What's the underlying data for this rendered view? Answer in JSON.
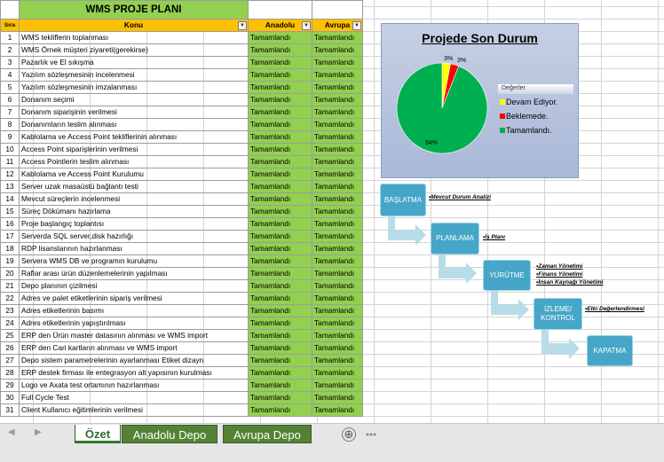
{
  "sheet": {
    "title": "WMS PROJE PLANI",
    "headers": {
      "sira": "Sıra",
      "konu": "Konu",
      "anadolu": "Anadolu",
      "avrupa": "Avrupa"
    },
    "filter_icon": "dropdown-arrow-icon",
    "rows": [
      {
        "no": "1",
        "konu": "WMS tekliflerin toplanması",
        "anadolu": "Tamamlandı",
        "avrupa": "Tamamlandı"
      },
      {
        "no": "2",
        "konu": "WMS Örnek müşteri ziyareti(gerekirse)",
        "anadolu": "Tamamlandı",
        "avrupa": "Tamamlandı"
      },
      {
        "no": "3",
        "konu": "Pazarlık ve El sıkışma",
        "anadolu": "Tamamlandı",
        "avrupa": "Tamamlandı"
      },
      {
        "no": "4",
        "konu": "Yazılım sözleşmesinin incelenmesi",
        "anadolu": "Tamamlandı",
        "avrupa": "Tamamlandı"
      },
      {
        "no": "5",
        "konu": "Yazılım sözleşmesinin imzalanması",
        "anadolu": "Tamamlandı",
        "avrupa": "Tamamlandı"
      },
      {
        "no": "6",
        "konu": "Donanım seçimi",
        "anadolu": "Tamamlandı",
        "avrupa": "Tamamlandı"
      },
      {
        "no": "7",
        "konu": "Donanım siparişinin verilmesi",
        "anadolu": "Tamamlandı",
        "avrupa": "Tamamlandı"
      },
      {
        "no": "8",
        "konu": "Donanımların teslim alınması",
        "anadolu": "Tamamlandı",
        "avrupa": "Tamamlandı"
      },
      {
        "no": "9",
        "konu": "Kablolama ve Access Point tekliflerinin alınması",
        "anadolu": "Tamamlandı",
        "avrupa": "Tamamlandı"
      },
      {
        "no": "10",
        "konu": "Access Point siparişlerinin verilmesi",
        "anadolu": "Tamamlandı",
        "avrupa": "Tamamlandı"
      },
      {
        "no": "11",
        "konu": "Access Pointlerin teslim alınması",
        "anadolu": "Tamamlandı",
        "avrupa": "Tamamlandı"
      },
      {
        "no": "12",
        "konu": "Kablolama ve Access Point Kurulumu",
        "anadolu": "Tamamlandı",
        "avrupa": "Tamamlandı"
      },
      {
        "no": "13",
        "konu": "Server uzak masaüstü bağlantı testi",
        "anadolu": "Tamamlandı",
        "avrupa": "Tamamlandı"
      },
      {
        "no": "14",
        "konu": "Mevcut süreçlerin incelenmesi",
        "anadolu": "Tamamlandı",
        "avrupa": "Tamamlandı"
      },
      {
        "no": "15",
        "konu": "Süreç Dökümanı hazırlama",
        "anadolu": "Tamamlandı",
        "avrupa": "Tamamlandı"
      },
      {
        "no": "16",
        "konu": "Proje başlangıç toplantısı",
        "anadolu": "Tamamlandı",
        "avrupa": "Tamamlandı"
      },
      {
        "no": "17",
        "konu": "Serverda SQL server,disk hazırlığı",
        "anadolu": "Tamamlandı",
        "avrupa": "Tamamlandı"
      },
      {
        "no": "18",
        "konu": "RDP lisanslarının hazırlanması",
        "anadolu": "Tamamlandı",
        "avrupa": "Tamamlandı"
      },
      {
        "no": "19",
        "konu": "Servera WMS DB ve programın kurulumu",
        "anadolu": "Tamamlandı",
        "avrupa": "Tamamlandı"
      },
      {
        "no": "20",
        "konu": "Raflar arası ürün düzenlemelerinin yapılması",
        "anadolu": "Tamamlandı",
        "avrupa": "Tamamlandı"
      },
      {
        "no": "21",
        "konu": "Depo planının çizilmesi",
        "anadolu": "Tamamlandı",
        "avrupa": "Tamamlandı"
      },
      {
        "no": "22",
        "konu": "Adres ve palet etiketlerinin sipariş verilmesi",
        "anadolu": "Tamamlandı",
        "avrupa": "Tamamlandı"
      },
      {
        "no": "23",
        "konu": "Adres etiketlerinin basımı",
        "anadolu": "Tamamlandı",
        "avrupa": "Tamamlandı"
      },
      {
        "no": "24",
        "konu": "Adres etiketlerinin yapıştırılması",
        "anadolu": "Tamamlandı",
        "avrupa": "Tamamlandı"
      },
      {
        "no": "25",
        "konu": "ERP den Ürün master datasının alınması ve WMS import",
        "anadolu": "Tamamlandı",
        "avrupa": "Tamamlandı"
      },
      {
        "no": "26",
        "konu": "ERP den Cari kartların alınması ve WMS import",
        "anadolu": "Tamamlandı",
        "avrupa": "Tamamlandı"
      },
      {
        "no": "27",
        "konu": "Depo sistem parametrelerinin ayarlanması Etiket dizayn",
        "anadolu": "Tamamlandı",
        "avrupa": "Tamamlandı"
      },
      {
        "no": "28",
        "konu": "ERP destek firması ile entegrasyon alt yapısının kurulması",
        "anadolu": "Tamamlandı",
        "avrupa": "Tamamlandı"
      },
      {
        "no": "29",
        "konu": "Logo ve Axata test ortamının hazırlanması",
        "anadolu": "Tamamlandı",
        "avrupa": "Tamamlandı"
      },
      {
        "no": "30",
        "konu": "Full Cycle Test",
        "anadolu": "Tamamlandı",
        "avrupa": "Tamamlandı"
      },
      {
        "no": "31",
        "konu": "Client Kullanıcı eğitimlerinin verilmesi",
        "anadolu": "Tamamlandı",
        "avrupa": "Tamamlandı"
      }
    ]
  },
  "chart_data": {
    "type": "pie",
    "title": "Projede Son Durum",
    "legend_title": "Değerler",
    "legend_position": "right",
    "categories": [
      "Devam Ediyor.",
      "Beklemede.",
      "Tamamlandı."
    ],
    "values": [
      3,
      3,
      94
    ],
    "labels": [
      "3%",
      "3%",
      "94%"
    ],
    "colors": [
      "#ffff00",
      "#ff0000",
      "#00b050"
    ]
  },
  "process": {
    "steps": [
      {
        "label": "BAŞLATMA",
        "notes": [
          "•Mevcut Durum Analizi"
        ]
      },
      {
        "label": "PLANLAMA",
        "notes": [
          "•İş Planı"
        ]
      },
      {
        "label": "YÜRÜTME",
        "notes": [
          "•Zaman Yönetimi",
          "•Finans Yönetimi",
          "•İnsan Kaynağı Yönetimi"
        ]
      },
      {
        "label": "İZLEME/ KONTROL",
        "notes": [
          "•Etki Değerlendirmesi"
        ]
      },
      {
        "label": "KAPATMA",
        "notes": []
      }
    ]
  },
  "tabs": {
    "items": [
      {
        "label": "Özet",
        "active": true
      },
      {
        "label": "Anadolu Depo",
        "active": false
      },
      {
        "label": "Avrupa Depo",
        "active": false
      }
    ],
    "nav_prev": "◀",
    "nav_next": "▶",
    "add": "⊕"
  },
  "colors": {
    "header": "#ffc000",
    "status": "#92d050",
    "tab": "#548235",
    "step": "#46a6c7"
  }
}
